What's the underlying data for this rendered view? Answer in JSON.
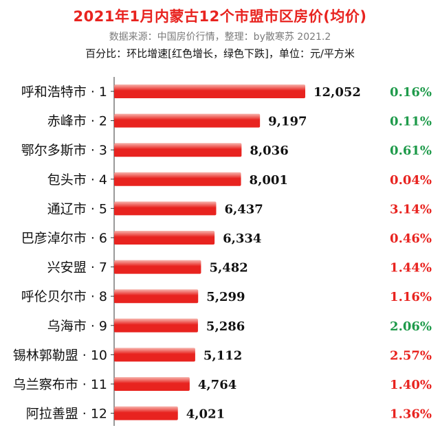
{
  "header": {
    "title": "2021年1月内蒙古12个市盟市区房价(均价)",
    "source": "数据来源：中国房价行情，整理：by散寒苏  2021.2",
    "note": "百分比：环比增速[红色增长，绿色下跌]，单位：元/平方米"
  },
  "colors": {
    "bar": "#e8231f",
    "bar_light": "#f7b5ae",
    "increase": "#e8231f",
    "decrease": "#1e9a4a",
    "title": "#e8231f",
    "axis": "#333333"
  },
  "chart_data": {
    "type": "bar",
    "orientation": "horizontal",
    "title": "2021年1月内蒙古12个市盟市区房价(均价)",
    "categories": [
      "呼和浩特市 · 1",
      "赤峰市 · 2",
      "鄂尔多斯市 · 3",
      "包头市 · 4",
      "通辽市 · 5",
      "巴彦淖尔市 · 6",
      "兴安盟 · 7",
      "呼伦贝尔市 · 8",
      "乌海市 · 9",
      "锡林郭勒盟 · 10",
      "乌兰察布市 · 11",
      "阿拉善盟 · 12"
    ],
    "values": [
      12052,
      9197,
      8036,
      8001,
      6437,
      6334,
      5482,
      5299,
      5286,
      5112,
      4764,
      4021
    ],
    "value_labels": [
      "12,052",
      "9,197",
      "8,036",
      "8,001",
      "6,437",
      "6,334",
      "5,482",
      "5,299",
      "5,286",
      "5,112",
      "4,764",
      "4,021"
    ],
    "percent_labels": [
      "0.16%",
      "0.11%",
      "0.61%",
      "0.04%",
      "3.14%",
      "0.46%",
      "1.44%",
      "1.16%",
      "2.06%",
      "2.57%",
      "1.40%",
      "1.36%"
    ],
    "percent_trend": [
      "decrease",
      "decrease",
      "decrease",
      "increase",
      "increase",
      "increase",
      "increase",
      "increase",
      "decrease",
      "increase",
      "increase",
      "increase"
    ],
    "xlim": [
      0,
      12052
    ],
    "grid": false,
    "legend": "none"
  }
}
